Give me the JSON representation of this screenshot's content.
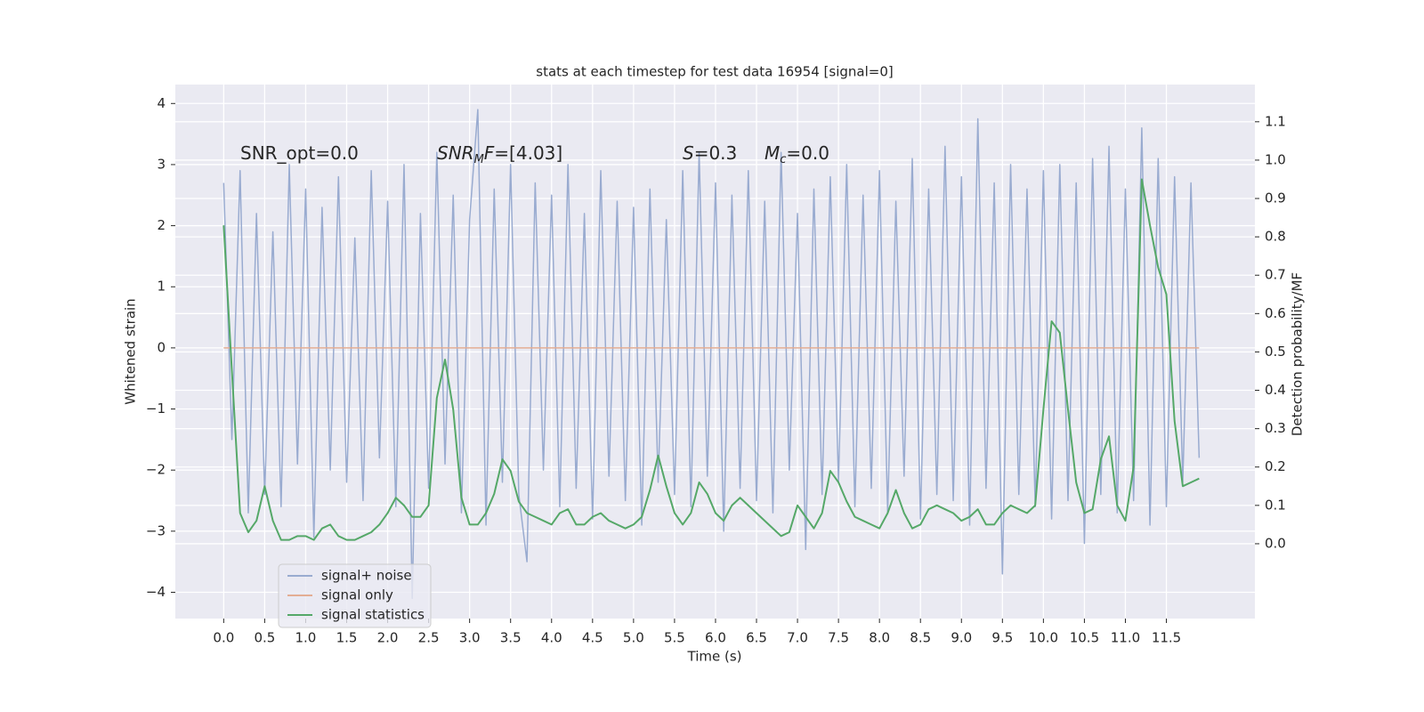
{
  "chart_data": {
    "type": "line",
    "title": "stats at each timestep for test data 16954 [signal=0]",
    "xlabel": "Time (s)",
    "ylabel": "Whitened strain",
    "y2label": "Detection probability/MF",
    "annotations": [
      [
        {
          "text": "SNR_opt=0.0"
        }
      ],
      [
        {
          "text": "SNR",
          "italic": true
        },
        {
          "text": "M",
          "italic": true,
          "sub": true
        },
        {
          "text": "F",
          "italic": true
        },
        {
          "text": "=[4.03]"
        }
      ],
      [
        {
          "text": "S",
          "italic": true
        },
        {
          "text": "=0.3"
        }
      ],
      [
        {
          "text": "M",
          "italic": true
        },
        {
          "text": "c",
          "italic": true,
          "sub": true
        },
        {
          "text": "=0.0"
        }
      ]
    ],
    "x": [
      0.0,
      0.1,
      0.2,
      0.3,
      0.4,
      0.5,
      0.6,
      0.7,
      0.8,
      0.9,
      1.0,
      1.1,
      1.2,
      1.3,
      1.4,
      1.5,
      1.6,
      1.7,
      1.8,
      1.9,
      2.0,
      2.1,
      2.2,
      2.3,
      2.4,
      2.5,
      2.6,
      2.7,
      2.8,
      2.9,
      3.0,
      3.1,
      3.2,
      3.3,
      3.4,
      3.5,
      3.6,
      3.7,
      3.8,
      3.9,
      4.0,
      4.1,
      4.2,
      4.3,
      4.4,
      4.5,
      4.6,
      4.7,
      4.8,
      4.9,
      5.0,
      5.1,
      5.2,
      5.3,
      5.4,
      5.5,
      5.6,
      5.7,
      5.8,
      5.9,
      6.0,
      6.1,
      6.2,
      6.3,
      6.4,
      6.5,
      6.6,
      6.7,
      6.8,
      6.9,
      7.0,
      7.1,
      7.2,
      7.3,
      7.4,
      7.5,
      7.6,
      7.7,
      7.8,
      7.9,
      8.0,
      8.1,
      8.2,
      8.3,
      8.4,
      8.5,
      8.6,
      8.7,
      8.8,
      8.9,
      9.0,
      9.1,
      9.2,
      9.3,
      9.4,
      9.5,
      9.6,
      9.7,
      9.8,
      9.9,
      10.0,
      10.1,
      10.2,
      10.3,
      10.4,
      10.5,
      10.6,
      10.7,
      10.8,
      10.9,
      11.0,
      11.1,
      11.2,
      11.3,
      11.4,
      11.5,
      11.6,
      11.7,
      11.8,
      11.9
    ],
    "series": [
      {
        "name": "signal+ noise",
        "color": "#99abd0",
        "values": [
          2.7,
          -1.5,
          2.9,
          -2.7,
          2.2,
          -2.4,
          1.9,
          -2.6,
          3.0,
          -1.9,
          2.6,
          -3.1,
          2.3,
          -2.0,
          2.8,
          -2.2,
          1.8,
          -2.5,
          2.9,
          -1.8,
          2.4,
          -2.6,
          3.0,
          -4.1,
          2.2,
          -2.3,
          3.2,
          -1.9,
          2.5,
          -2.7,
          2.1,
          3.9,
          -2.9,
          2.6,
          -2.2,
          3.0,
          -2.4,
          -3.5,
          2.7,
          -2.0,
          2.5,
          -2.6,
          3.0,
          -2.3,
          2.2,
          -2.8,
          2.9,
          -2.1,
          2.4,
          -2.5,
          2.3,
          -2.9,
          2.6,
          -2.2,
          2.1,
          -2.4,
          2.9,
          -2.6,
          3.2,
          -2.1,
          2.7,
          -3.0,
          2.5,
          -2.3,
          2.9,
          -2.5,
          2.4,
          -2.7,
          3.2,
          -2.0,
          2.2,
          -3.3,
          2.6,
          -2.4,
          2.8,
          -2.2,
          3.0,
          -2.6,
          2.5,
          -2.3,
          2.9,
          -2.7,
          2.4,
          -2.1,
          3.1,
          -2.8,
          2.6,
          -2.4,
          3.3,
          -2.5,
          2.8,
          -2.9,
          3.75,
          -2.3,
          2.7,
          -3.7,
          3.0,
          -2.4,
          2.6,
          -2.6,
          2.9,
          -2.8,
          3.0,
          -2.5,
          2.7,
          -3.2,
          3.1,
          -2.4,
          3.3,
          -2.7,
          2.6,
          -2.5,
          3.6,
          -2.9,
          3.1,
          -2.6,
          2.8,
          -2.2,
          2.7,
          -1.8
        ]
      },
      {
        "name": "signal only",
        "color": "#e3ad93",
        "values": [
          0,
          0,
          0,
          0,
          0,
          0,
          0,
          0,
          0,
          0,
          0,
          0,
          0,
          0,
          0,
          0,
          0,
          0,
          0,
          0,
          0,
          0,
          0,
          0,
          0,
          0,
          0,
          0,
          0,
          0,
          0,
          0,
          0,
          0,
          0,
          0,
          0,
          0,
          0,
          0,
          0,
          0,
          0,
          0,
          0,
          0,
          0,
          0,
          0,
          0,
          0,
          0,
          0,
          0,
          0,
          0,
          0,
          0,
          0,
          0,
          0,
          0,
          0,
          0,
          0,
          0,
          0,
          0,
          0,
          0,
          0,
          0,
          0,
          0,
          0,
          0,
          0,
          0,
          0,
          0,
          0,
          0,
          0,
          0,
          0,
          0,
          0,
          0,
          0,
          0,
          0,
          0,
          0,
          0,
          0,
          0,
          0,
          0,
          0,
          0,
          0,
          0,
          0,
          0,
          0,
          0,
          0,
          0,
          0,
          0,
          0,
          0,
          0,
          0,
          0,
          0,
          0,
          0,
          0,
          0
        ]
      },
      {
        "name": "signal statistics",
        "color": "#55a868",
        "axis": "y2",
        "values": [
          0.83,
          0.45,
          0.08,
          0.03,
          0.06,
          0.15,
          0.06,
          0.01,
          0.01,
          0.02,
          0.02,
          0.01,
          0.04,
          0.05,
          0.02,
          0.01,
          0.01,
          0.02,
          0.03,
          0.05,
          0.08,
          0.12,
          0.1,
          0.07,
          0.07,
          0.1,
          0.38,
          0.48,
          0.35,
          0.12,
          0.05,
          0.05,
          0.08,
          0.13,
          0.22,
          0.19,
          0.11,
          0.08,
          0.07,
          0.06,
          0.05,
          0.08,
          0.09,
          0.05,
          0.05,
          0.07,
          0.08,
          0.06,
          0.05,
          0.04,
          0.05,
          0.07,
          0.14,
          0.23,
          0.15,
          0.08,
          0.05,
          0.08,
          0.16,
          0.13,
          0.08,
          0.06,
          0.1,
          0.12,
          0.1,
          0.08,
          0.06,
          0.04,
          0.02,
          0.03,
          0.1,
          0.07,
          0.04,
          0.08,
          0.19,
          0.16,
          0.11,
          0.07,
          0.06,
          0.05,
          0.04,
          0.08,
          0.14,
          0.08,
          0.04,
          0.05,
          0.09,
          0.1,
          0.09,
          0.08,
          0.06,
          0.07,
          0.09,
          0.05,
          0.05,
          0.08,
          0.1,
          0.09,
          0.08,
          0.1,
          0.35,
          0.58,
          0.55,
          0.35,
          0.16,
          0.08,
          0.09,
          0.22,
          0.28,
          0.1,
          0.06,
          0.2,
          0.95,
          0.83,
          0.72,
          0.65,
          0.32,
          0.15,
          0.16,
          0.17
        ]
      }
    ],
    "xlim": [
      -0.59,
      12.58
    ],
    "xticks": [
      {
        "value": 0,
        "label": "0.0"
      },
      0.5,
      {
        "value": 1,
        "label": "1.0"
      },
      1.5,
      {
        "value": 2,
        "label": "2.0"
      },
      2.5,
      {
        "value": 3,
        "label": "3.0"
      },
      3.5,
      {
        "value": 4,
        "label": "4.0"
      },
      4.5,
      {
        "value": 5,
        "label": "5.0"
      },
      5.5,
      {
        "value": 6,
        "label": "6.0"
      },
      6.5,
      {
        "value": 7,
        "label": "7.0"
      },
      7.5,
      {
        "value": 8,
        "label": "8.0"
      },
      8.5,
      {
        "value": 9,
        "label": "9.0"
      },
      9.5,
      {
        "value": 10,
        "label": "10.0"
      },
      10.5,
      {
        "value": 11,
        "label": "11.0"
      },
      11.5
    ],
    "ylim": [
      -4.43,
      4.31
    ],
    "yticks": [
      {
        "value": -4,
        "label": "−4"
      },
      {
        "value": -3,
        "label": "−3"
      },
      {
        "value": -2,
        "label": "−2"
      },
      {
        "value": -1,
        "label": "−1"
      },
      0,
      1,
      2,
      3,
      4
    ],
    "y2lim": [
      -0.195,
      1.197
    ],
    "y2ticks": [
      {
        "value": 0,
        "label": "0.0"
      },
      0.1,
      0.2,
      0.3,
      0.4,
      0.5,
      0.6,
      0.7,
      0.8,
      0.9,
      {
        "value": 1,
        "label": "1.0"
      },
      1.1
    ],
    "grid": true,
    "legend": "lower left"
  }
}
